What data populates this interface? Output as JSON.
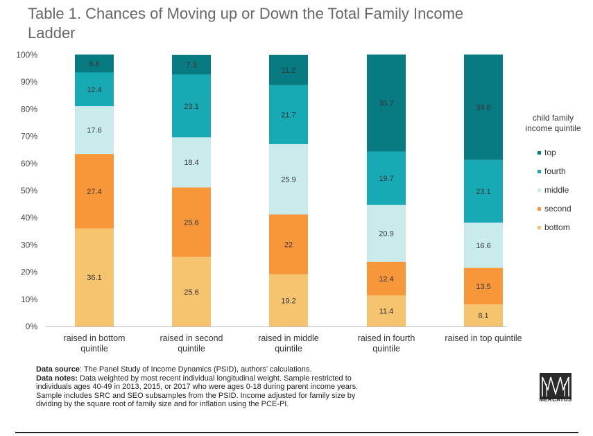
{
  "title": "Table 1. Chances of Moving up or Down the Total Family Income Ladder",
  "chart_data": {
    "type": "bar",
    "stacked": true,
    "categories": [
      [
        "raised in bottom",
        "quintile"
      ],
      [
        "raised in second",
        "quintile"
      ],
      [
        "raised in middle",
        "quintile"
      ],
      [
        "raised in fourth",
        "quintile"
      ],
      [
        "raised in top quintile"
      ]
    ],
    "series": [
      {
        "name": "bottom",
        "color": "#f6c36f",
        "values": [
          36.1,
          25.6,
          19.2,
          11.4,
          8.1
        ],
        "labels": [
          "36.1",
          "25.6",
          "19.2",
          "11.4",
          "8.1"
        ]
      },
      {
        "name": "second",
        "color": "#f7973a",
        "values": [
          27.4,
          25.6,
          22,
          12.4,
          13.5
        ],
        "labels": [
          "27.4",
          "25.6",
          "22",
          "12.4",
          "13.5"
        ]
      },
      {
        "name": "middle",
        "color": "#c9ebec",
        "values": [
          17.6,
          18.4,
          25.9,
          20.9,
          16.6
        ],
        "labels": [
          "17.6",
          "18.4",
          "25.9",
          "20.9",
          "16.6"
        ]
      },
      {
        "name": "fourth",
        "color": "#17aab5",
        "values": [
          12.4,
          23.1,
          21.7,
          19.7,
          23.1
        ],
        "labels": [
          "12.4",
          "23.1",
          "21.7",
          "19.7",
          "23.1"
        ]
      },
      {
        "name": "top",
        "color": "#087a82",
        "values": [
          6.6,
          7.3,
          11.2,
          35.7,
          38.8
        ],
        "labels": [
          "6.6",
          "7.3",
          "11.2",
          "35.7",
          "38.8"
        ]
      }
    ],
    "y_ticks": [
      "0%",
      "10%",
      "20%",
      "30%",
      "40%",
      "50%",
      "60%",
      "70%",
      "80%",
      "90%",
      "100%"
    ],
    "ylim": [
      0,
      100
    ],
    "legend": {
      "title": [
        "child family",
        "income quintile"
      ],
      "position": "right",
      "order": [
        "top",
        "fourth",
        "middle",
        "second",
        "bottom"
      ]
    }
  },
  "notes": {
    "source_label": "Data source",
    "source_text": ": The Panel Study of Income Dynamics (PSID), authors’ calculations.",
    "notes_label": "Data notes:",
    "notes_lines": [
      " Data weighted by most recent individual longitudinal weight. Sample restricted to",
      "individuals ages 40-49 in 2013, 2015, or 2017 who were ages 0-18 during parent income years.",
      "Sample includes SRC and SEO subsamples from the PSID. Income adjusted for family size by",
      "dividing by the square root of family size and for inflation using the PCE-PI."
    ]
  },
  "logo": {
    "text": "MERCATUS"
  }
}
